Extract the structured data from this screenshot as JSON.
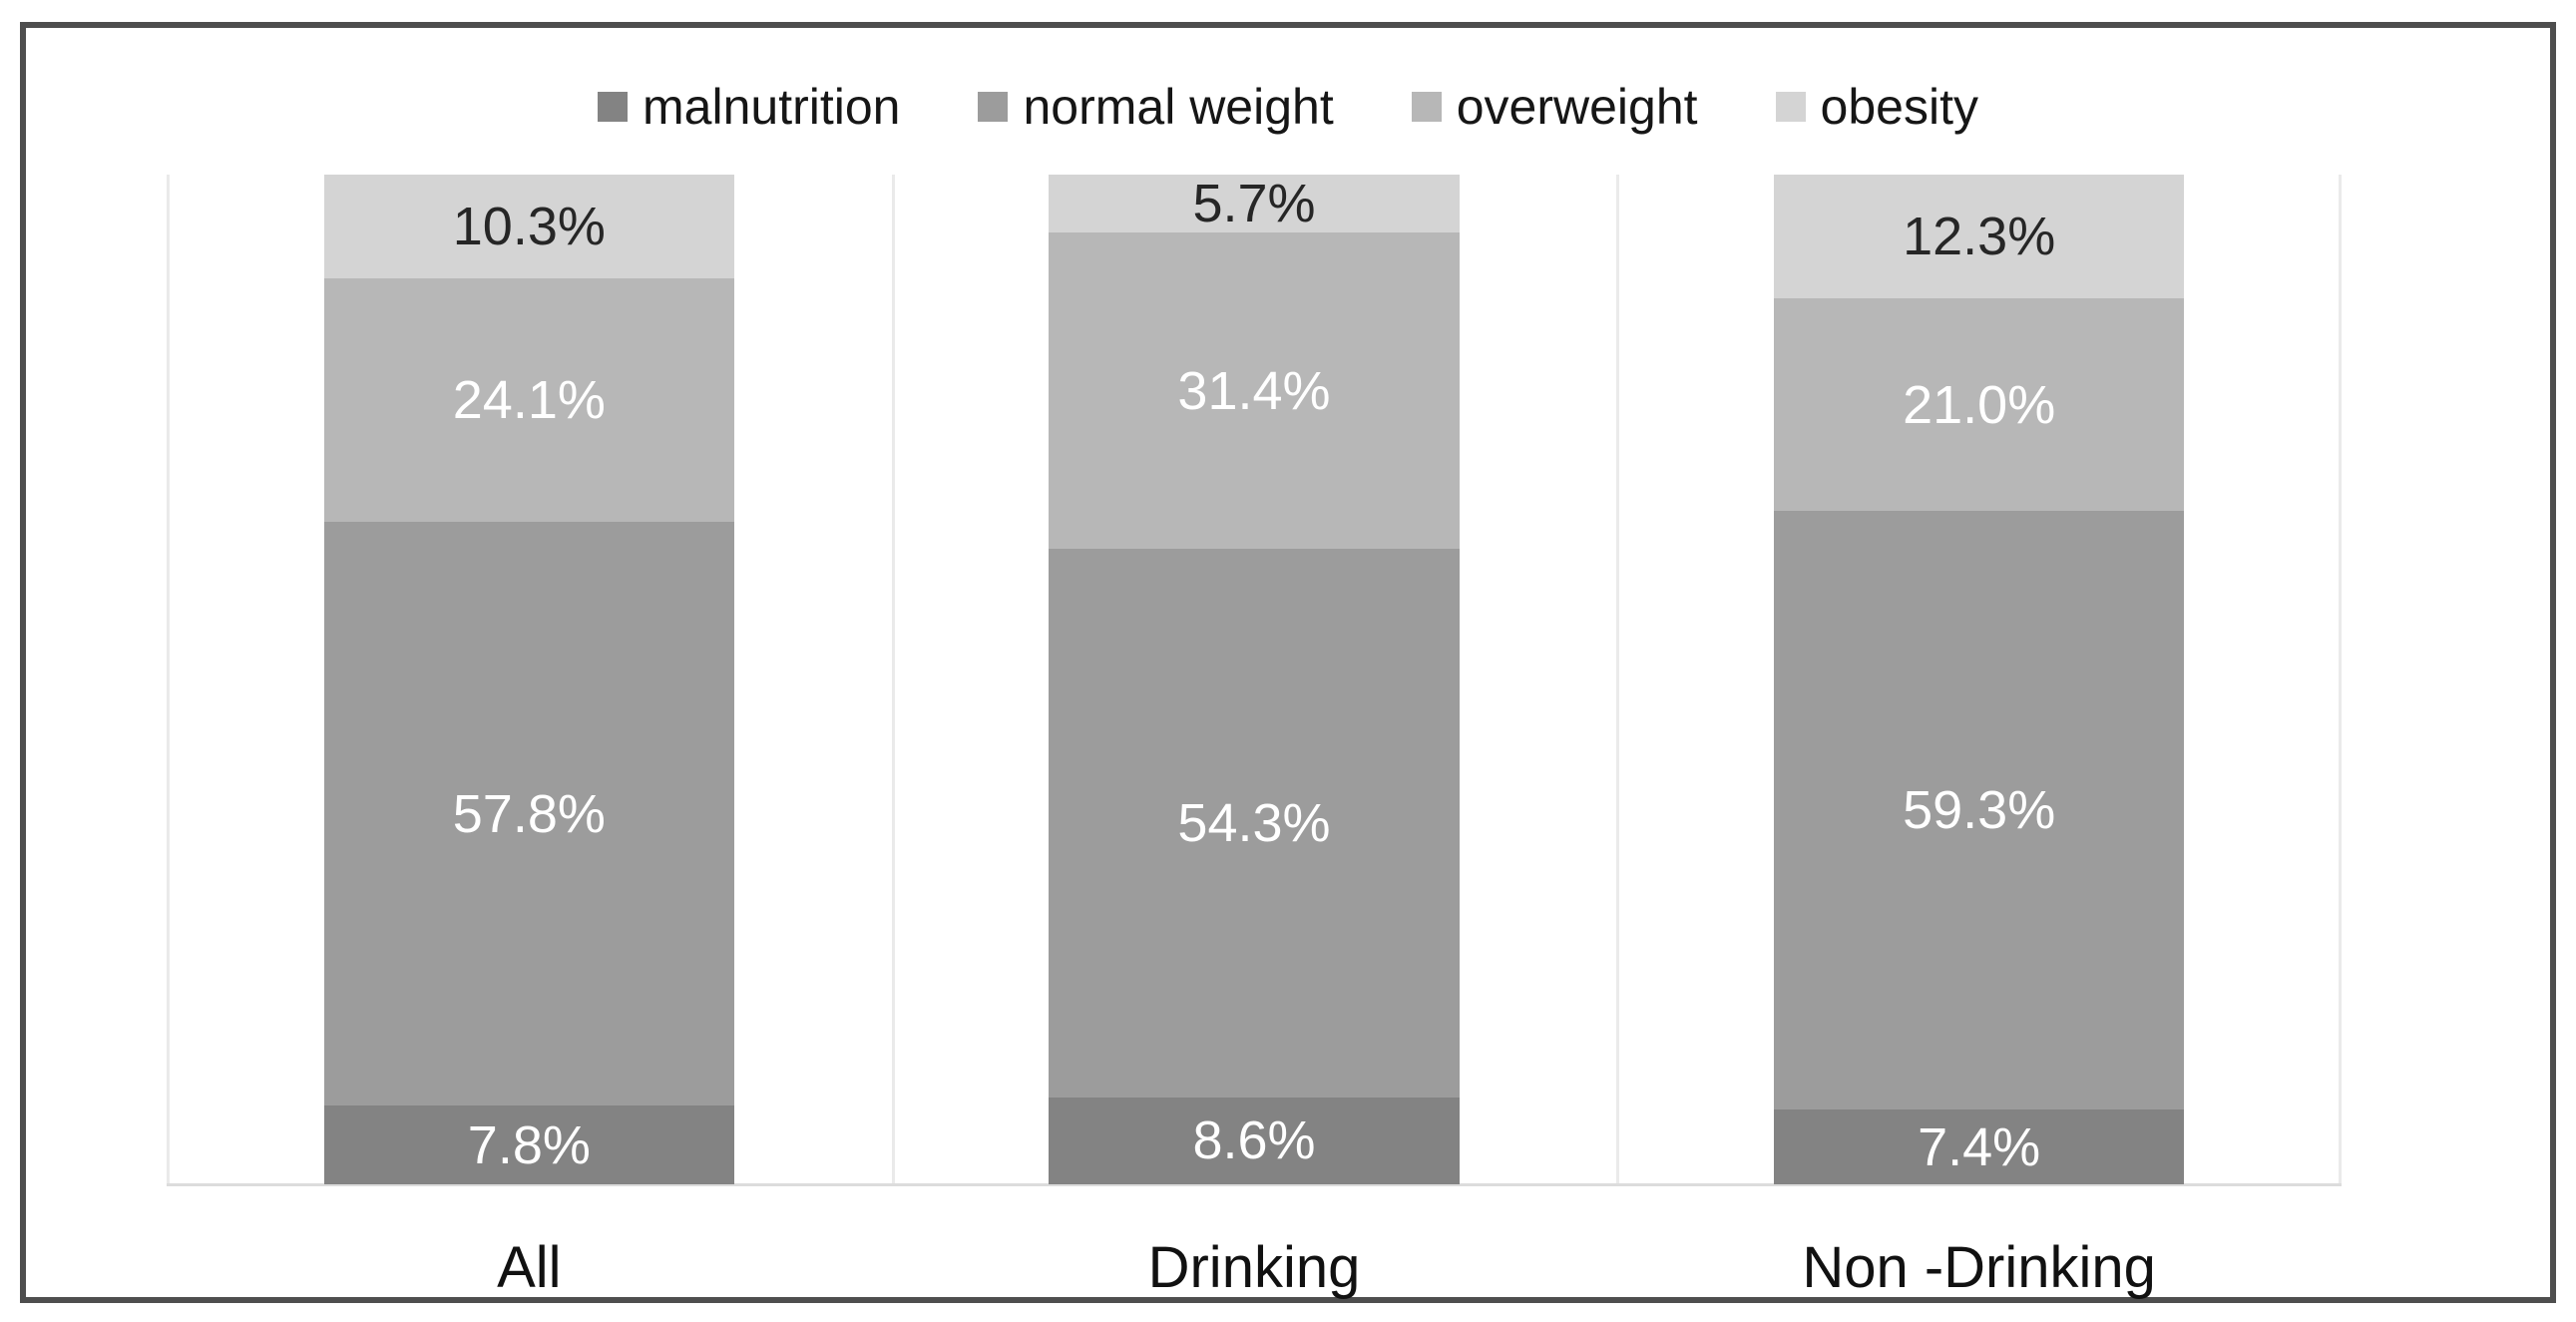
{
  "chart_data": {
    "type": "bar",
    "subtype": "stacked_100_percent_column",
    "title": "",
    "xlabel": "",
    "ylabel": "",
    "ylim": [
      0,
      100
    ],
    "grid": "vertical category separators only",
    "legend_position": "top center",
    "value_format": "percent with one decimal",
    "categories": [
      "All",
      "Drinking",
      "Non -Drinking"
    ],
    "series": [
      {
        "name": "malnutrition",
        "color": "#838383",
        "label_color": "#ffffff",
        "values": [
          7.8,
          8.6,
          7.4
        ],
        "labels": [
          "7.8%",
          "8.6%",
          "7.4%"
        ]
      },
      {
        "name": "normal weight",
        "color": "#9c9c9c",
        "label_color": "#ffffff",
        "values": [
          57.8,
          54.3,
          59.3
        ],
        "labels": [
          "57.8%",
          "54.3%",
          "59.3%"
        ]
      },
      {
        "name": "overweight",
        "color": "#b7b7b7",
        "label_color": "#ffffff",
        "values": [
          24.1,
          31.4,
          21.0
        ],
        "labels": [
          "24.1%",
          "31.4%",
          "21.0%"
        ]
      },
      {
        "name": "obesity",
        "color": "#d4d4d4",
        "label_color": "#262626",
        "values": [
          10.3,
          5.7,
          12.3
        ],
        "labels": [
          "10.3%",
          "5.7%",
          "12.3%"
        ]
      }
    ]
  },
  "style_colors": {
    "frame_border": "#4e4e4e",
    "gridline": "#eaeaea",
    "axis_baseline": "#dcdcdc",
    "background": "#ffffff",
    "legend_text": "#161616",
    "category_text": "#111111"
  }
}
